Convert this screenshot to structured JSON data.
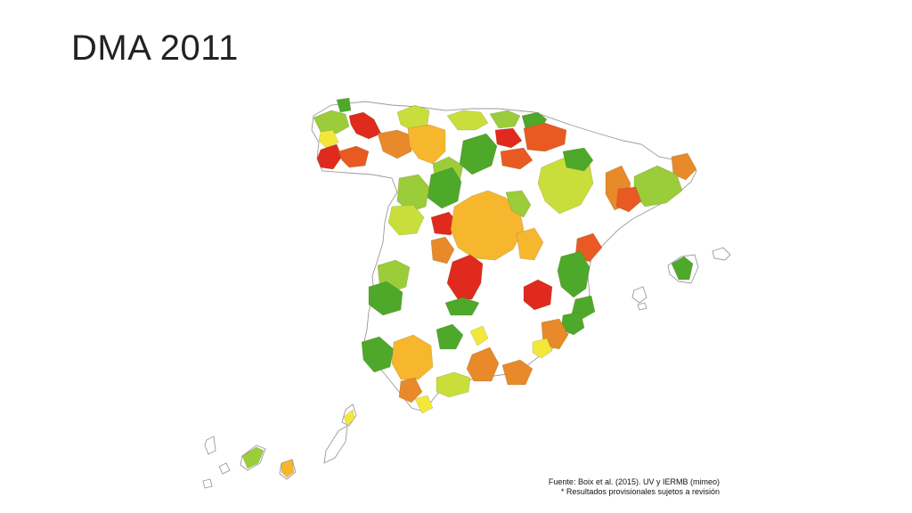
{
  "title": "DMA 2011",
  "source_line1": "Fuente: Boix et al. (2015). UV y IERMB (mimeo)",
  "source_line2": "* Resultados provisionales sujetos a revisión",
  "palette": {
    "dark_green": "#4ea82a",
    "light_green": "#9bcc3a",
    "yellow_green": "#c9de3a",
    "yellow": "#f2e83a",
    "light_orange": "#f6b62e",
    "orange": "#e8892a",
    "orange_red": "#e85a22",
    "red": "#e02a1e",
    "outline": "#9a9a9a"
  }
}
